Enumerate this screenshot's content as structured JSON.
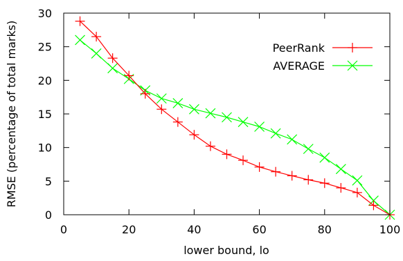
{
  "chart_data": {
    "type": "line",
    "title": "",
    "xlabel": "lower bound, lo",
    "ylabel": "RMSE (percentage of total marks)",
    "xlim": [
      0,
      100
    ],
    "ylim": [
      0,
      30
    ],
    "xticks": [
      0,
      20,
      40,
      60,
      80,
      100
    ],
    "yticks": [
      0,
      5,
      10,
      15,
      20,
      25,
      30
    ],
    "grid": false,
    "legend_position": "top-right",
    "series": [
      {
        "name": "PeerRank",
        "color": "#ff0000",
        "marker": "plus",
        "x": [
          5,
          10,
          15,
          20,
          25,
          30,
          35,
          40,
          45,
          50,
          55,
          60,
          65,
          70,
          75,
          80,
          85,
          90,
          95,
          100
        ],
        "y": [
          28.8,
          26.5,
          23.3,
          20.7,
          18.0,
          15.7,
          13.8,
          11.9,
          10.2,
          9.0,
          8.1,
          7.1,
          6.4,
          5.8,
          5.2,
          4.7,
          4.0,
          3.3,
          1.4,
          0.0
        ]
      },
      {
        "name": "AVERAGE",
        "color": "#00ff00",
        "marker": "x",
        "x": [
          5,
          10,
          15,
          20,
          25,
          30,
          35,
          40,
          45,
          50,
          55,
          60,
          65,
          70,
          75,
          80,
          85,
          90,
          95,
          100
        ],
        "y": [
          26.0,
          24.0,
          21.8,
          20.2,
          18.5,
          17.3,
          16.6,
          15.7,
          15.1,
          14.5,
          13.8,
          13.1,
          12.1,
          11.2,
          9.8,
          8.5,
          6.8,
          5.1,
          2.1,
          0.0
        ]
      }
    ]
  }
}
